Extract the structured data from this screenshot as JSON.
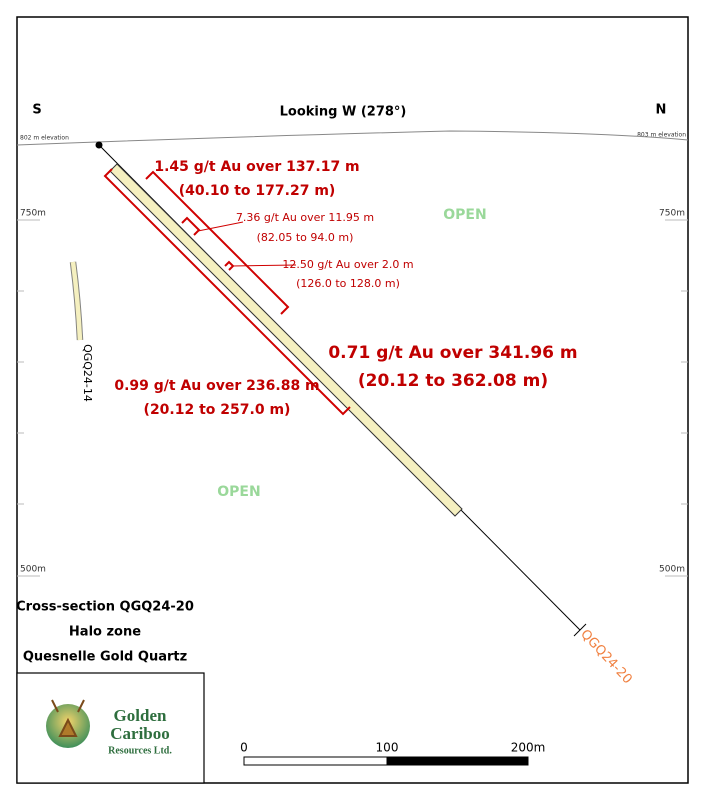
{
  "header": {
    "left": "S",
    "right": "N",
    "title": "Looking W (278°)",
    "left_elevation": "802 m elevation",
    "right_elevation": "803 m elevation"
  },
  "elevation_labels": {
    "left": [
      "750m",
      "500m"
    ],
    "right": [
      "750m",
      "500m"
    ]
  },
  "intercepts": [
    {
      "grade": "1.45 g/t Au over 137.17 m",
      "interval": "(40.10 to 177.27 m)"
    },
    {
      "grade": "7.36 g/t Au over 11.95 m",
      "interval": "(82.05 to 94.0 m)"
    },
    {
      "grade": "12.50 g/t Au over 2.0 m",
      "interval": "(126.0 to 128.0 m)"
    },
    {
      "grade": "0.71 g/t Au over 341.96 m",
      "interval": "(20.12 to 362.08 m)"
    },
    {
      "grade": "0.99 g/t Au over 236.88 m",
      "interval": "(20.12 to 257.0 m)"
    }
  ],
  "open_labels": [
    "OPEN",
    "OPEN"
  ],
  "holes": [
    "QGQ24-14",
    "QGQ24-20"
  ],
  "caption": [
    "Cross-section QGQ24-20",
    "Halo zone",
    "Quesnelle Gold Quartz"
  ],
  "logo": [
    "Golden",
    "Cariboo",
    "Resources Ltd."
  ],
  "scale_bar": [
    "0",
    "100",
    "200m"
  ]
}
